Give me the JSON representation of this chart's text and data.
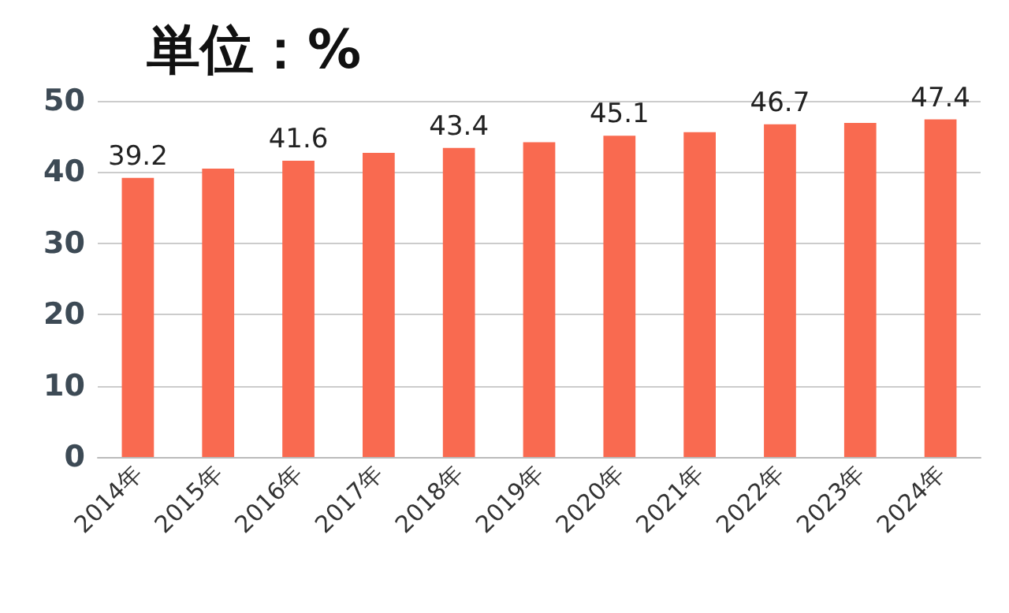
{
  "chart_data": {
    "type": "bar",
    "title": "単位：%",
    "categories": [
      "2014年",
      "2015年",
      "2016年",
      "2017年",
      "2018年",
      "2019年",
      "2020年",
      "2021年",
      "2022年",
      "2023年",
      "2024年"
    ],
    "series": [
      {
        "color": "#f96a50",
        "values": [
          39.2,
          40.5,
          41.6,
          42.7,
          43.4,
          44.2,
          45.1,
          45.6,
          46.7,
          46.9,
          47.4
        ],
        "value_labels": [
          "39.2",
          null,
          "41.6",
          null,
          "43.4",
          null,
          "45.1",
          null,
          "46.7",
          null,
          "47.4"
        ]
      }
    ],
    "ylim": [
      0,
      50
    ],
    "yticks": [
      0,
      10,
      20,
      30,
      40,
      50
    ],
    "grid": "y"
  }
}
